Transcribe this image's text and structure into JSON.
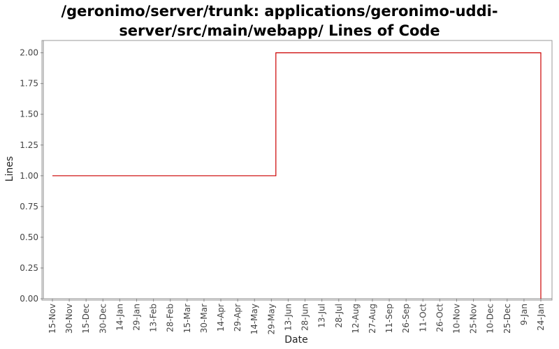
{
  "chart_data": {
    "type": "line",
    "step": true,
    "title_lines": [
      "/geronimo/server/trunk: applications/geronimo-uddi-",
      "server/src/main/webapp/ Lines of Code"
    ],
    "xlabel": "Date",
    "ylabel": "Lines",
    "ylim": [
      0,
      2.1
    ],
    "yticks": [
      "0.00",
      "0.25",
      "0.50",
      "0.75",
      "1.00",
      "1.25",
      "1.50",
      "1.75",
      "2.00"
    ],
    "xticks": [
      "15-Nov",
      "30-Nov",
      "15-Dec",
      "30-Dec",
      "14-Jan",
      "29-Jan",
      "13-Feb",
      "28-Feb",
      "15-Mar",
      "30-Mar",
      "14-Apr",
      "29-Apr",
      "14-May",
      "29-May",
      "13-Jun",
      "28-Jun",
      "13-Jul",
      "28-Jul",
      "12-Aug",
      "27-Aug",
      "11-Sep",
      "26-Sep",
      "11-Oct",
      "26-Oct",
      "10-Nov",
      "25-Nov",
      "10-Dec",
      "25-Dec",
      "9-Jan",
      "24-Jan"
    ],
    "grid": false,
    "series": [
      {
        "color": "#cc0000",
        "points": [
          {
            "x": "15-Nov",
            "y": 1
          },
          {
            "x": "2-Jun",
            "y": 1
          },
          {
            "x": "2-Jun",
            "y": 2
          },
          {
            "x": "24-Jan",
            "y": 2
          },
          {
            "x": "24-Jan",
            "y": 0
          }
        ]
      }
    ]
  }
}
